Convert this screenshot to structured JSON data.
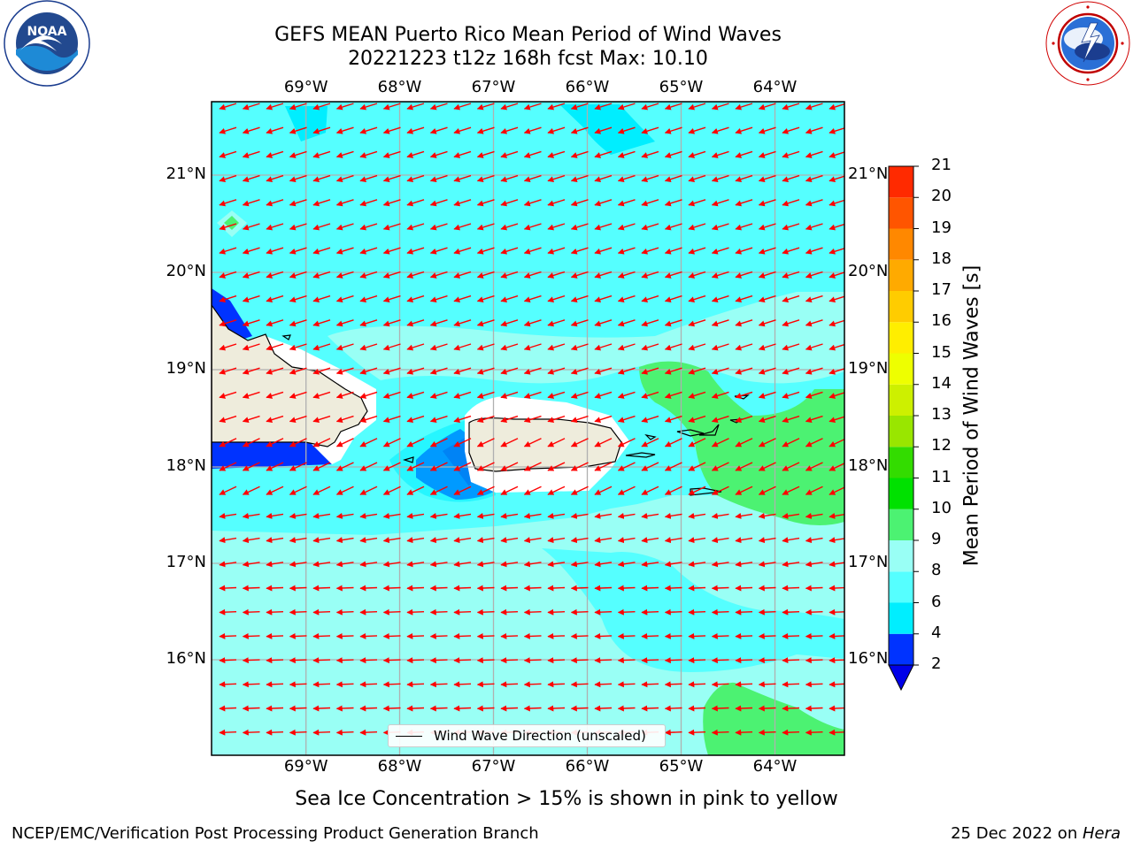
{
  "title_line1": "GEFS MEAN Puerto Rico Mean Period of Wind Waves",
  "title_line2": "20221223 t12z 168h fcst   Max: 10.10",
  "logos": {
    "left": {
      "icon": "noaa-logo",
      "text": "NOAA",
      "ring_text": "NATIONAL OCEANIC AND ATMOSPHERIC ADMINISTRATION · U.S. DEPARTMENT OF COMMERCE"
    },
    "right": {
      "icon": "national-weather-service-logo",
      "ring_text": "NATIONAL WEATHER SERVICE"
    }
  },
  "map": {
    "lon_labels": [
      "69°W",
      "68°W",
      "67°W",
      "66°W",
      "65°W",
      "64°W"
    ],
    "lat_labels": [
      "21°N",
      "20°N",
      "19°N",
      "18°N",
      "17°N",
      "16°N"
    ],
    "lon_range": [
      -70.0,
      -63.25
    ],
    "lat_range": [
      15.0,
      21.75
    ],
    "legend_label": "Wind Wave Direction (unscaled)",
    "arrow_color": "#ff0000",
    "land_color": "#eeecdc"
  },
  "colorbar": {
    "label": "Mean Period of Wind Waves [s]",
    "ticks": [
      "2",
      "4",
      "6",
      "8",
      "9",
      "10",
      "11",
      "12",
      "13",
      "14",
      "15",
      "16",
      "17",
      "18",
      "19",
      "20",
      "21"
    ],
    "colors": [
      "#0033ff",
      "#00eeff",
      "#55ffff",
      "#99fff5",
      "#4cf272",
      "#00e100",
      "#33dc00",
      "#99e600",
      "#cdf000",
      "#eeff00",
      "#ffee00",
      "#ffcc00",
      "#ffaa00",
      "#ff8800",
      "#ff5500",
      "#ff2a00",
      "#ff0000"
    ],
    "extend_color": "#0000e8"
  },
  "subcaption": "Sea Ice Concentration > 15% is shown in pink to yellow",
  "footer_left": "NCEP/EMC/Verification Post Processing Product Generation Branch",
  "footer_right_text": "25 Dec 2022 on ",
  "footer_right_machine": "Hera"
}
